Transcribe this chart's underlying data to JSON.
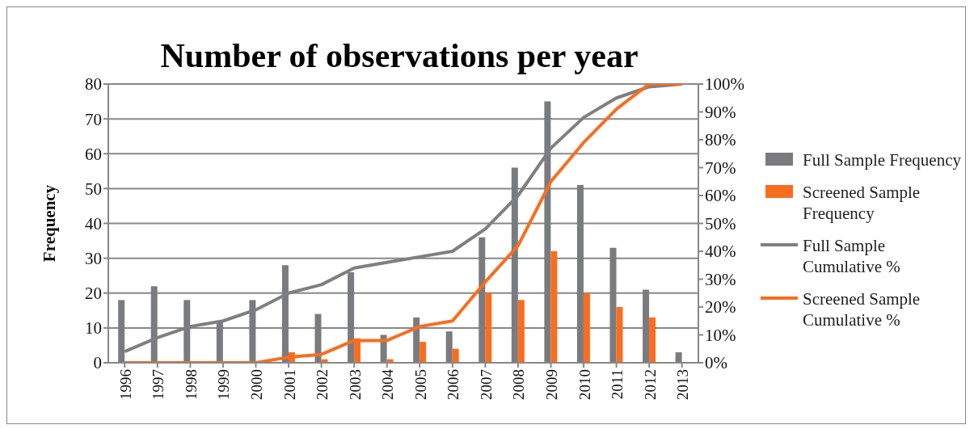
{
  "chart_data": {
    "type": "bar",
    "title": "Number of observations per year",
    "ylabel": "Frequency",
    "categories": [
      "1996",
      "1997",
      "1998",
      "1999",
      "2000",
      "2001",
      "2002",
      "2003",
      "2004",
      "2005",
      "2006",
      "2007",
      "2008",
      "2009",
      "2010",
      "2011",
      "2012",
      "2013"
    ],
    "series": [
      {
        "name": "Full Sample Frequency",
        "color": "#7a7b7f",
        "values": [
          18,
          22,
          18,
          12,
          18,
          28,
          14,
          26,
          8,
          13,
          9,
          36,
          56,
          75,
          51,
          33,
          21,
          3
        ]
      },
      {
        "name": "Screened Sample Frequency",
        "color": "#f96d1e",
        "values": [
          0,
          0,
          0,
          0,
          0,
          3,
          1,
          7,
          1,
          6,
          4,
          20,
          18,
          32,
          20,
          16,
          13,
          0
        ]
      },
      {
        "name": "Full Sample Cumulative %",
        "color": "#7f7f7f",
        "type": "line",
        "axis": "y2",
        "values": [
          4,
          9,
          13,
          15,
          19,
          25,
          28,
          34,
          36,
          38,
          40,
          48,
          60,
          77,
          88,
          95,
          99,
          100
        ]
      },
      {
        "name": "Screened Sample Cumulative %",
        "color": "#f96d1e",
        "type": "line",
        "axis": "y2",
        "values": [
          0,
          0,
          0,
          0,
          0,
          2,
          3,
          8,
          8,
          13,
          15,
          29,
          42,
          65,
          79,
          91,
          100,
          100
        ]
      }
    ],
    "ylim": [
      0,
      80
    ],
    "yticks": [
      0,
      10,
      20,
      30,
      40,
      50,
      60,
      70,
      80
    ],
    "y2lim": [
      0,
      100
    ],
    "y2ticks": [
      {
        "value": 0,
        "label": "0%"
      },
      {
        "value": 10,
        "label": "10%"
      },
      {
        "value": 20,
        "label": "20%"
      },
      {
        "value": 30,
        "label": "30%"
      },
      {
        "value": 40,
        "label": "40%"
      },
      {
        "value": 50,
        "label": "50%"
      },
      {
        "value": 60,
        "label": "60%"
      },
      {
        "value": 70,
        "label": "70%"
      },
      {
        "value": 80,
        "label": "80%"
      },
      {
        "value": 90,
        "label": "90%"
      },
      {
        "value": 100,
        "label": "100%"
      }
    ],
    "grid": "y",
    "legend": "right",
    "marker": "none",
    "line_style": "solid"
  }
}
